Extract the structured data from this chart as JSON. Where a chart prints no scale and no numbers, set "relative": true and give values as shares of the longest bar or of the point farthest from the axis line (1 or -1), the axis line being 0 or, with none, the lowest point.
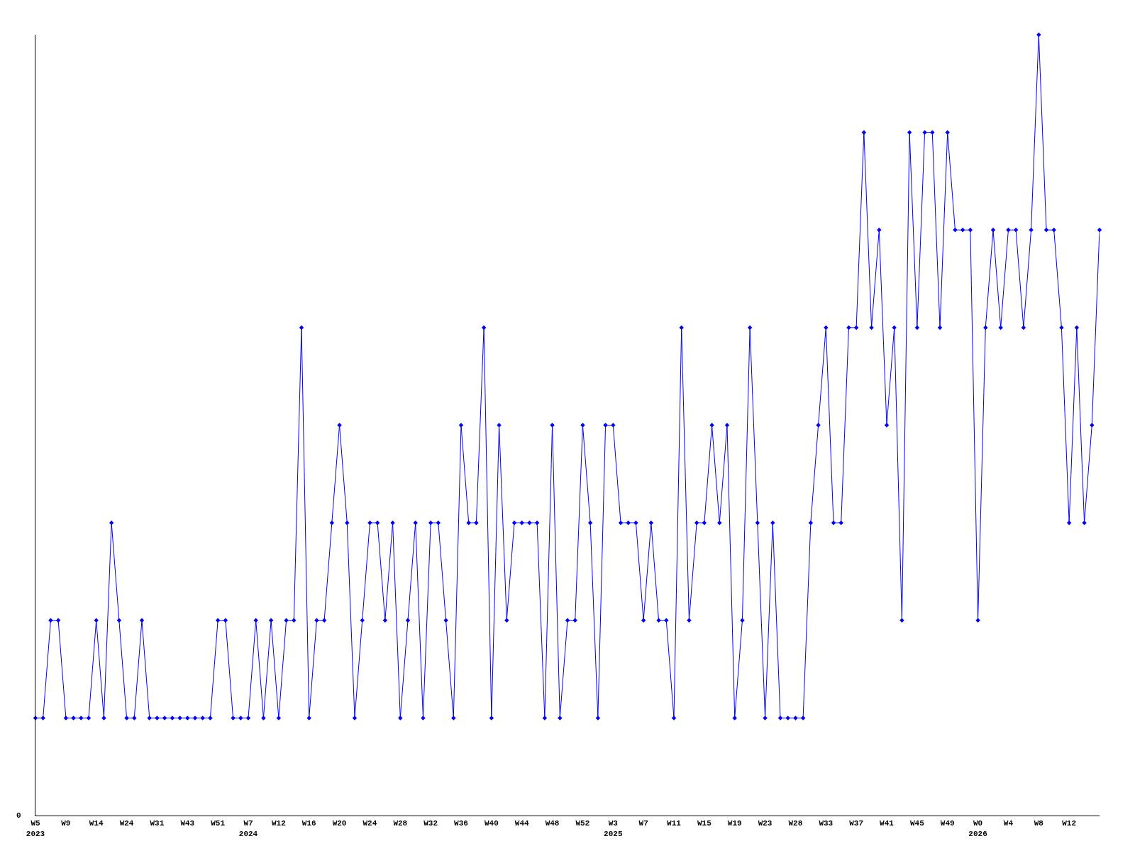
{
  "chart_data": {
    "type": "line",
    "relative": true,
    "marker": "diamond",
    "line_style": "solid",
    "categories": [
      "W5\n2023",
      null,
      null,
      null,
      "W9",
      null,
      null,
      null,
      "W14",
      null,
      null,
      null,
      "W24",
      null,
      null,
      null,
      "W31",
      null,
      null,
      null,
      "W43",
      null,
      null,
      null,
      "W51",
      null,
      null,
      null,
      "W7\n2024",
      null,
      null,
      null,
      "W12",
      null,
      null,
      null,
      "W16",
      null,
      null,
      null,
      "W20",
      null,
      null,
      null,
      "W24",
      null,
      null,
      null,
      "W28",
      null,
      null,
      null,
      "W32",
      null,
      null,
      null,
      "W36",
      null,
      null,
      null,
      "W40",
      null,
      null,
      null,
      "W44",
      null,
      null,
      null,
      "W48",
      null,
      null,
      null,
      "W52",
      null,
      null,
      null,
      "W3\n2025",
      null,
      null,
      null,
      "W7",
      null,
      null,
      null,
      "W11",
      null,
      null,
      null,
      "W15",
      null,
      null,
      null,
      "W19",
      null,
      null,
      null,
      "W23",
      null,
      null,
      null,
      "W28",
      null,
      null,
      null,
      "W33",
      null,
      null,
      null,
      "W37",
      null,
      null,
      null,
      "W41",
      null,
      null,
      null,
      "W45",
      null,
      null,
      null,
      "W49",
      null,
      null,
      null,
      "W0\n2026",
      null,
      null,
      null,
      "W4",
      null,
      null,
      null,
      "W8",
      null,
      null,
      null,
      "W12",
      null,
      null,
      null,
      null
    ],
    "series": [
      {
        "color": "#0000ff",
        "values": [
          0.125,
          0.125,
          0.25,
          0.25,
          0.125,
          0.125,
          0.125,
          0.125,
          0.25,
          0.125,
          0.375,
          0.25,
          0.125,
          0.125,
          0.25,
          0.125,
          0.125,
          0.125,
          0.125,
          0.125,
          0.125,
          0.125,
          0.125,
          0.125,
          0.25,
          0.25,
          0.125,
          0.125,
          0.125,
          0.25,
          0.125,
          0.25,
          0.125,
          0.25,
          0.25,
          0.625,
          0.125,
          0.25,
          0.25,
          0.375,
          0.5,
          0.375,
          0.125,
          0.25,
          0.375,
          0.375,
          0.25,
          0.375,
          0.125,
          0.25,
          0.375,
          0.125,
          0.375,
          0.375,
          0.25,
          0.125,
          0.5,
          0.375,
          0.375,
          0.625,
          0.125,
          0.5,
          0.25,
          0.375,
          0.375,
          0.375,
          0.375,
          0.125,
          0.5,
          0.125,
          0.25,
          0.25,
          0.5,
          0.375,
          0.125,
          0.5,
          0.5,
          0.375,
          0.375,
          0.375,
          0.25,
          0.375,
          0.25,
          0.25,
          0.125,
          0.625,
          0.25,
          0.375,
          0.375,
          0.5,
          0.375,
          0.5,
          0.125,
          0.25,
          0.625,
          0.375,
          0.125,
          0.375,
          0.125,
          0.125,
          0.125,
          0.125,
          0.375,
          0.5,
          0.625,
          0.375,
          0.375,
          0.625,
          0.625,
          0.875,
          0.625,
          0.75,
          0.5,
          0.625,
          0.25,
          0.875,
          0.625,
          0.875,
          0.875,
          0.625,
          0.875,
          0.75,
          0.75,
          0.75,
          0.25,
          0.625,
          0.75,
          0.625,
          0.75,
          0.75,
          0.625,
          0.75,
          1,
          0.75,
          0.75,
          0.625,
          0.375,
          0.625,
          0.375,
          0.5,
          0.75
        ]
      }
    ],
    "annotations": [
      "0"
    ]
  }
}
